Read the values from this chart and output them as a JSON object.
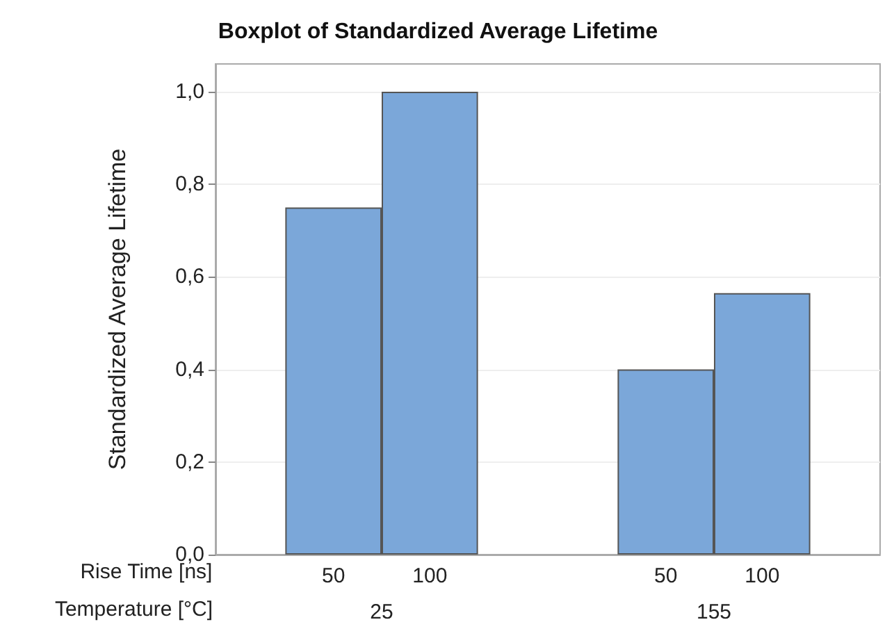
{
  "chart_data": {
    "type": "bar",
    "title": "Boxplot of Standardized Average Lifetime",
    "xlabel": "Temperature [°C]",
    "ylabel": "Standardized Average Lifetime",
    "legend_title": "Rise Time [ns]",
    "categories": [
      "25",
      "155"
    ],
    "series": [
      {
        "name": "50",
        "color": "#7ba7d9",
        "values": [
          0.75,
          0.4
        ]
      },
      {
        "name": "100",
        "color": "#7ba7d9",
        "values": [
          1.0,
          0.565
        ]
      }
    ],
    "ylim": [
      0,
      1.06
    ],
    "yticks": [
      {
        "value": 0,
        "label": "0,0"
      },
      {
        "value": 0.2,
        "label": "0,2"
      },
      {
        "value": 0.4,
        "label": "0,4"
      },
      {
        "value": 0.6,
        "label": "0,6"
      },
      {
        "value": 0.8,
        "label": "0,8"
      },
      {
        "value": 1.0,
        "label": "1,0"
      }
    ],
    "grid": "y"
  }
}
